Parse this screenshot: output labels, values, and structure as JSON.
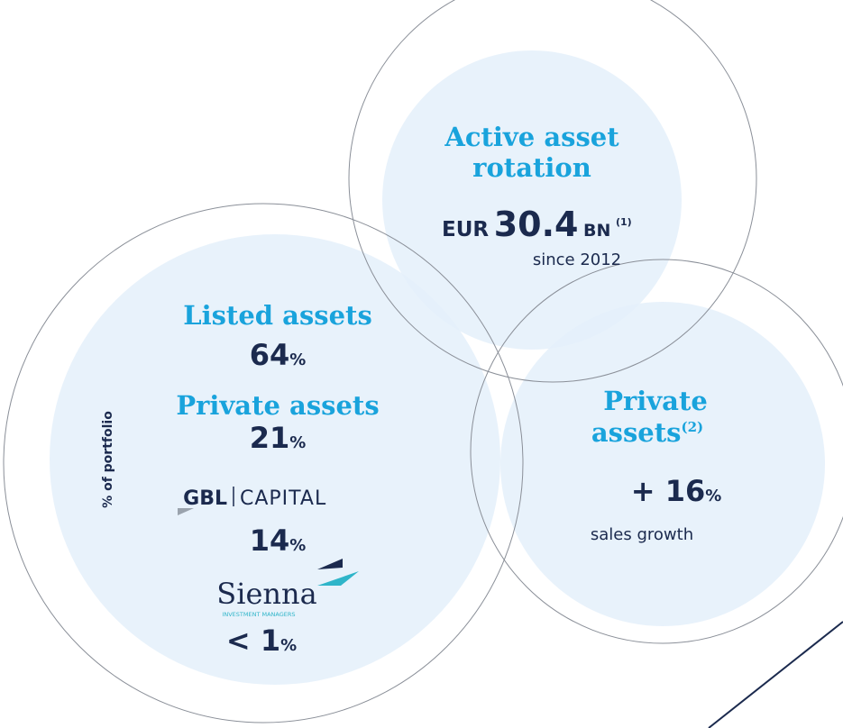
{
  "rotation": {
    "title_lines": [
      "Active asset",
      "rotation"
    ],
    "currency": "EUR",
    "value": "30.4",
    "unit": "BN",
    "note": "(1)",
    "caption": "since 2012"
  },
  "portfolio": {
    "axis_label": "% of portfolio",
    "listed": {
      "label": "Listed assets",
      "value": "64",
      "unit": "%"
    },
    "private": {
      "label": "Private assets",
      "value": "21",
      "unit": "%"
    },
    "gbl_capital": {
      "logo_left": "GBL",
      "logo_right": "CAPITAL",
      "value": "14",
      "unit": "%"
    },
    "sienna": {
      "logo": "Sienna",
      "logo_sub": "INVESTMENT MANAGERS",
      "value": "< 1",
      "unit": "%"
    }
  },
  "private_assets": {
    "title_lines": [
      "Private",
      "assets"
    ],
    "note": "(2)",
    "value": "+ 16",
    "unit": "%",
    "caption": "sales growth"
  }
}
